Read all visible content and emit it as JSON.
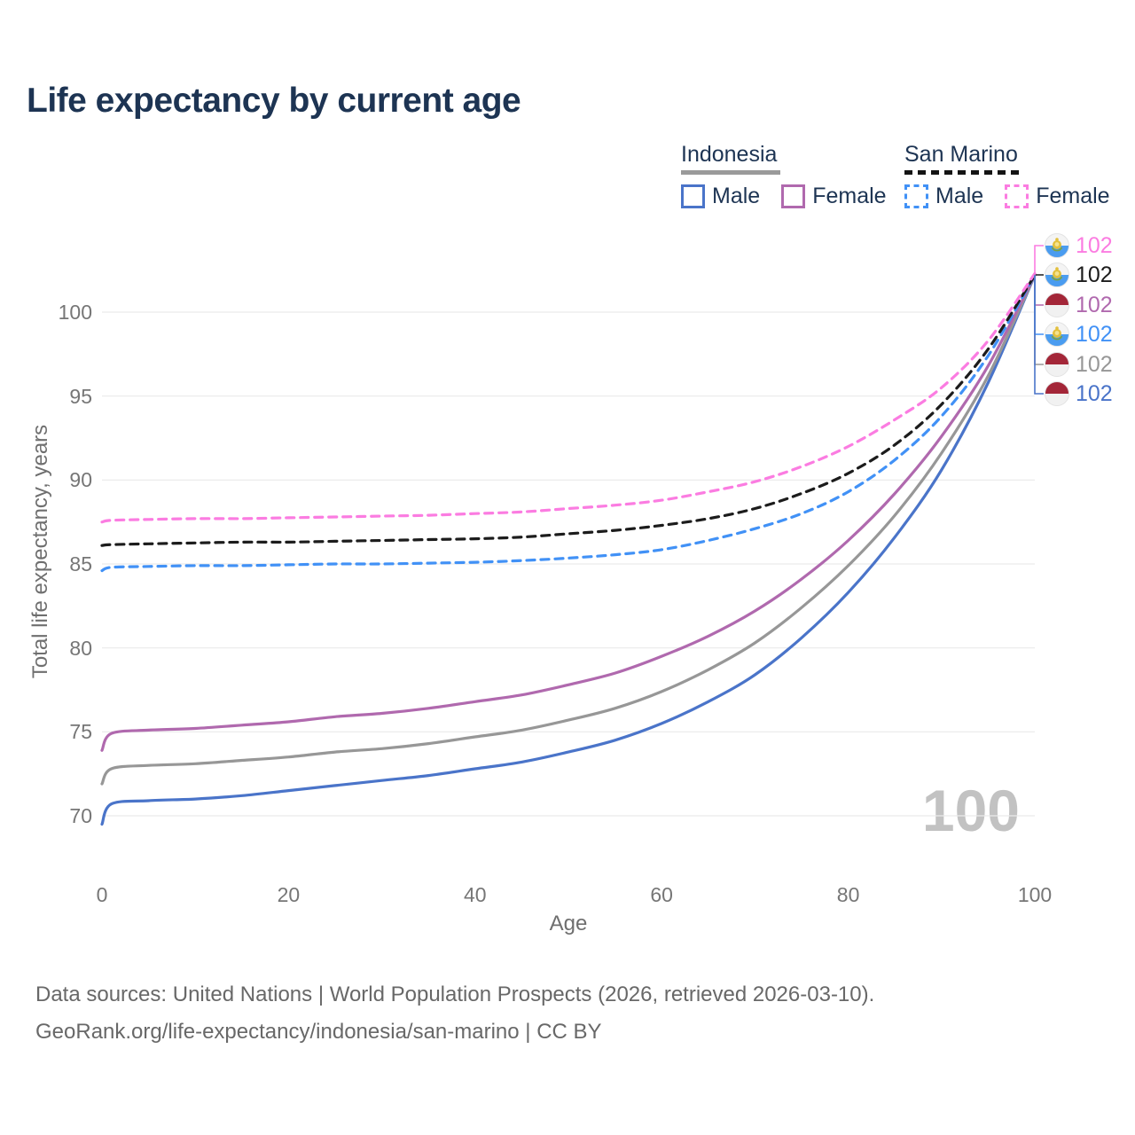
{
  "title": "Life expectancy by current age",
  "watermark": "100",
  "legend": {
    "groups": [
      {
        "label": "Indonesia",
        "underline_style": "solid",
        "underline_color": "#9a9a9a",
        "underline_width": 112,
        "items": [
          {
            "label": "Male",
            "color": "#4a74c9",
            "dash": false
          },
          {
            "label": "Female",
            "color": "#b069ae",
            "dash": false
          }
        ]
      },
      {
        "label": "San Marino",
        "underline_style": "dashed",
        "underline_color": "#141414",
        "underline_width": 130,
        "items": [
          {
            "label": "Male",
            "color": "#4191f6",
            "dash": true
          },
          {
            "label": "Female",
            "color": "#fb7ce1",
            "dash": true
          }
        ]
      }
    ]
  },
  "chart_data": {
    "type": "line",
    "title": "Life expectancy by current age",
    "xlabel": "Age",
    "ylabel": "Total life expectancy, years",
    "xticks": [
      0,
      20,
      40,
      60,
      80,
      100
    ],
    "yticks": [
      70,
      75,
      80,
      85,
      90,
      95,
      100
    ],
    "xlim": [
      0,
      100
    ],
    "ylim": [
      69,
      103.5
    ],
    "grid": "horizontal-only",
    "gridline_color": "#eaeaea",
    "series": [
      {
        "name": "Indonesia Male",
        "color": "#4a74c9",
        "dash": false,
        "end_row": 5,
        "points": [
          [
            0,
            69.5
          ],
          [
            1,
            70.7
          ],
          [
            5,
            70.9
          ],
          [
            10,
            71.0
          ],
          [
            15,
            71.2
          ],
          [
            20,
            71.5
          ],
          [
            25,
            71.8
          ],
          [
            30,
            72.1
          ],
          [
            35,
            72.4
          ],
          [
            40,
            72.8
          ],
          [
            45,
            73.2
          ],
          [
            50,
            73.8
          ],
          [
            55,
            74.5
          ],
          [
            60,
            75.5
          ],
          [
            65,
            76.8
          ],
          [
            70,
            78.4
          ],
          [
            75,
            80.6
          ],
          [
            80,
            83.3
          ],
          [
            85,
            86.6
          ],
          [
            90,
            90.6
          ],
          [
            95,
            95.8
          ],
          [
            100,
            102.2
          ]
        ]
      },
      {
        "name": "Indonesia Both sexes",
        "color": "#979797",
        "dash": false,
        "end_row": 4,
        "points": [
          [
            0,
            71.9
          ],
          [
            1,
            72.8
          ],
          [
            5,
            73.0
          ],
          [
            10,
            73.1
          ],
          [
            15,
            73.3
          ],
          [
            20,
            73.5
          ],
          [
            25,
            73.8
          ],
          [
            30,
            74.0
          ],
          [
            35,
            74.3
          ],
          [
            40,
            74.7
          ],
          [
            45,
            75.1
          ],
          [
            50,
            75.7
          ],
          [
            55,
            76.4
          ],
          [
            60,
            77.4
          ],
          [
            65,
            78.7
          ],
          [
            70,
            80.3
          ],
          [
            75,
            82.4
          ],
          [
            80,
            84.9
          ],
          [
            85,
            87.9
          ],
          [
            90,
            91.6
          ],
          [
            95,
            96.2
          ],
          [
            100,
            102.2
          ]
        ]
      },
      {
        "name": "Indonesia Female",
        "color": "#b069ae",
        "dash": false,
        "end_row": 2,
        "points": [
          [
            0,
            73.9
          ],
          [
            1,
            74.9
          ],
          [
            5,
            75.1
          ],
          [
            10,
            75.2
          ],
          [
            15,
            75.4
          ],
          [
            20,
            75.6
          ],
          [
            25,
            75.9
          ],
          [
            30,
            76.1
          ],
          [
            35,
            76.4
          ],
          [
            40,
            76.8
          ],
          [
            45,
            77.2
          ],
          [
            50,
            77.8
          ],
          [
            55,
            78.5
          ],
          [
            60,
            79.5
          ],
          [
            65,
            80.7
          ],
          [
            70,
            82.2
          ],
          [
            75,
            84.1
          ],
          [
            80,
            86.4
          ],
          [
            85,
            89.2
          ],
          [
            90,
            92.6
          ],
          [
            95,
            96.8
          ],
          [
            100,
            102.2
          ]
        ]
      },
      {
        "name": "San Marino Male",
        "color": "#4191f6",
        "dash": true,
        "end_row": 3,
        "points": [
          [
            0,
            84.6
          ],
          [
            1,
            84.8
          ],
          [
            5,
            84.85
          ],
          [
            10,
            84.9
          ],
          [
            15,
            84.9
          ],
          [
            20,
            84.95
          ],
          [
            25,
            85.0
          ],
          [
            30,
            85.0
          ],
          [
            35,
            85.05
          ],
          [
            40,
            85.1
          ],
          [
            45,
            85.2
          ],
          [
            50,
            85.35
          ],
          [
            55,
            85.55
          ],
          [
            60,
            85.85
          ],
          [
            65,
            86.4
          ],
          [
            70,
            87.1
          ],
          [
            75,
            88.0
          ],
          [
            80,
            89.3
          ],
          [
            85,
            91.2
          ],
          [
            90,
            93.8
          ],
          [
            95,
            97.4
          ],
          [
            100,
            102.2
          ]
        ]
      },
      {
        "name": "San Marino Both sexes",
        "color": "#1c1c1c",
        "dash": true,
        "end_row": 1,
        "points": [
          [
            0,
            86.1
          ],
          [
            1,
            86.15
          ],
          [
            5,
            86.2
          ],
          [
            10,
            86.25
          ],
          [
            15,
            86.3
          ],
          [
            20,
            86.3
          ],
          [
            25,
            86.35
          ],
          [
            30,
            86.4
          ],
          [
            35,
            86.45
          ],
          [
            40,
            86.5
          ],
          [
            45,
            86.6
          ],
          [
            50,
            86.8
          ],
          [
            55,
            87.0
          ],
          [
            60,
            87.3
          ],
          [
            65,
            87.7
          ],
          [
            70,
            88.3
          ],
          [
            75,
            89.2
          ],
          [
            80,
            90.4
          ],
          [
            85,
            92.1
          ],
          [
            90,
            94.5
          ],
          [
            95,
            97.8
          ],
          [
            100,
            102.2
          ]
        ]
      },
      {
        "name": "San Marino Female",
        "color": "#fb7ce1",
        "dash": true,
        "end_row": 0,
        "points": [
          [
            0,
            87.5
          ],
          [
            1,
            87.6
          ],
          [
            5,
            87.65
          ],
          [
            10,
            87.7
          ],
          [
            15,
            87.7
          ],
          [
            20,
            87.75
          ],
          [
            25,
            87.8
          ],
          [
            30,
            87.85
          ],
          [
            35,
            87.9
          ],
          [
            40,
            88.0
          ],
          [
            45,
            88.1
          ],
          [
            50,
            88.3
          ],
          [
            55,
            88.5
          ],
          [
            60,
            88.8
          ],
          [
            65,
            89.3
          ],
          [
            70,
            89.9
          ],
          [
            75,
            90.8
          ],
          [
            80,
            92.0
          ],
          [
            85,
            93.6
          ],
          [
            90,
            95.5
          ],
          [
            95,
            98.3
          ],
          [
            100,
            102.3
          ]
        ]
      }
    ],
    "end_labels": [
      {
        "series": "San Marino Female",
        "flag": "san-marino",
        "value": "102",
        "color": "#fb7ce1"
      },
      {
        "series": "San Marino Both sexes",
        "flag": "san-marino",
        "value": "102",
        "color": "#1c1c1c"
      },
      {
        "series": "Indonesia Female",
        "flag": "indonesia",
        "value": "102",
        "color": "#b069ae"
      },
      {
        "series": "San Marino Male",
        "flag": "san-marino",
        "value": "102",
        "color": "#4191f6"
      },
      {
        "series": "Indonesia Both sexes",
        "flag": "indonesia",
        "value": "102",
        "color": "#979797"
      },
      {
        "series": "Indonesia Male",
        "flag": "indonesia",
        "value": "102",
        "color": "#4a74c9"
      }
    ]
  },
  "footer": {
    "line1": "Data sources: United Nations | World Population Prospects (2026, retrieved 2026-03-10).",
    "line2": "GeoRank.org/life-expectancy/indonesia/san-marino | CC BY"
  }
}
